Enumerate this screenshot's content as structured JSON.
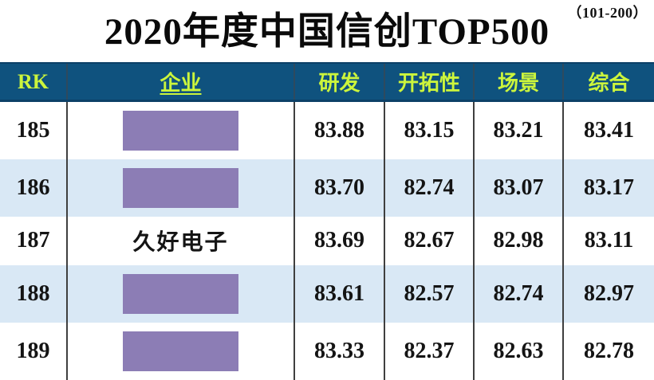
{
  "page": {
    "range_label": "（101-200）",
    "title": "2020年度中国信创TOP500"
  },
  "table": {
    "columns": [
      {
        "key": "rk",
        "label": "RK"
      },
      {
        "key": "company",
        "label": "企业"
      },
      {
        "key": "rd",
        "label": "研发"
      },
      {
        "key": "pioneering",
        "label": "开拓性"
      },
      {
        "key": "scene",
        "label": "场景"
      },
      {
        "key": "overall",
        "label": "综合"
      }
    ],
    "rows": [
      {
        "rank": "185",
        "company": "",
        "company_redacted": true,
        "rd": "83.88",
        "pioneering": "83.15",
        "scene": "83.21",
        "overall": "83.41"
      },
      {
        "rank": "186",
        "company": "",
        "company_redacted": true,
        "rd": "83.70",
        "pioneering": "82.74",
        "scene": "83.07",
        "overall": "83.17"
      },
      {
        "rank": "187",
        "company": "久好电子",
        "company_redacted": false,
        "rd": "83.69",
        "pioneering": "82.67",
        "scene": "82.98",
        "overall": "83.11"
      },
      {
        "rank": "188",
        "company": "",
        "company_redacted": true,
        "rd": "83.61",
        "pioneering": "82.57",
        "scene": "82.74",
        "overall": "82.97"
      },
      {
        "rank": "189",
        "company": "",
        "company_redacted": true,
        "rd": "83.33",
        "pioneering": "82.37",
        "scene": "82.63",
        "overall": "82.78"
      }
    ]
  },
  "colors": {
    "header_bg": "#0F527E",
    "header_border": "#0C4067",
    "header_text": "#CCF53C",
    "row_alt_bg": "#D9E8F5",
    "redaction_box": "#8C7DB5",
    "divider": "#3F3F3F",
    "body_text": "#141414"
  },
  "chart_data": {
    "type": "table",
    "title": "2020年度中国信创TOP500",
    "subtitle": "（101-200）",
    "columns": [
      "RK",
      "企业",
      "研发",
      "开拓性",
      "场景",
      "综合"
    ],
    "rows": [
      [
        "185",
        "(redacted)",
        83.88,
        83.15,
        83.21,
        83.41
      ],
      [
        "186",
        "(redacted)",
        83.7,
        82.74,
        83.07,
        83.17
      ],
      [
        "187",
        "久好电子",
        83.69,
        82.67,
        82.98,
        83.11
      ],
      [
        "188",
        "(redacted)",
        83.61,
        82.57,
        82.74,
        82.97
      ],
      [
        "189",
        "(redacted)",
        83.33,
        82.37,
        82.63,
        82.78
      ]
    ]
  }
}
